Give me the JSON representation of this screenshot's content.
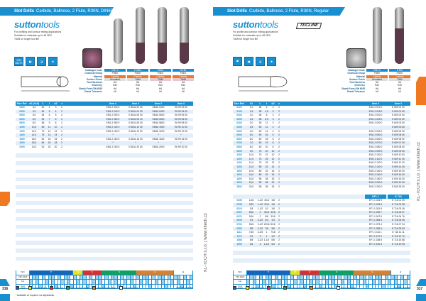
{
  "left": {
    "title_bold": "Slot Drills",
    "title_rest": "Carbide, Ballnose, 2 Flute, R30N, DIN6527K",
    "logo_bold": "sutton",
    "logo_light": "tools",
    "bullets": [
      "For profiling and contour milling applications",
      "Suitable for materials up to 48 HRC",
      "TiAlN for longer tool life"
    ],
    "icons": [
      "DIN 6527K",
      "depth",
      "coating",
      "coolant"
    ],
    "spec_labels": [
      "Catalogue Code",
      "Chemical Group",
      "Material",
      "Surface Finish",
      "Tool Hardness",
      "Geometry",
      "Shank Form DIN 6535",
      "Shank Tolerance"
    ],
    "spec_cols": [
      [
        "EM1 2",
        "P/M/K",
        "Carbide",
        "Uncoated",
        "HA",
        "R30",
        "HA",
        "h6"
      ],
      [
        "E 6811",
        "P/M/K",
        "Carbide",
        "TiAlN",
        "HA",
        "R30",
        "HA",
        "h6"
      ],
      [
        "EM16",
        "P/M/K",
        "Carbide",
        "TiAlN",
        "HA",
        "R30",
        "HA",
        "h6"
      ],
      [
        "E6 99",
        "P/M/K",
        "Carbide",
        "TiAlN",
        "HA",
        "R30",
        "HA",
        "h6"
      ]
    ],
    "table_headers": [
      "Size Ref.",
      "d1 (h10)",
      "L",
      "l",
      "d2",
      "z",
      "Item #",
      "Item #",
      "Item #",
      "Item #"
    ],
    "rows": [
      [
        "0300",
        "3,0",
        "50",
        "4",
        "3",
        "2",
        "EM1 2 030 0",
        "E 6811 03 00",
        "EM16 0300",
        "E6 99 03 00"
      ],
      [
        "0400",
        "4,0",
        "54",
        "5",
        "4",
        "2",
        "EM1 2 040 0",
        "E 6811 04 00",
        "EM16 0400",
        "E6 99 04 00"
      ],
      [
        "0500",
        "5,0",
        "54",
        "6",
        "5",
        "2",
        "EM1 2 050 0",
        "E 6811 05 00",
        "EM16 0500",
        "E6 99 05 00"
      ],
      [
        "0600",
        "6,0",
        "54",
        "7",
        "6",
        "2",
        "EM1 2 060 0",
        "E 6811 06 00",
        "EM16 0600",
        "E6 99 06 00"
      ],
      [
        "0800",
        "8,0",
        "58",
        "9",
        "8",
        "2",
        "EM1 2 080 0",
        "E 6811 08 00",
        "EM16 0800",
        "E6 99 08 00"
      ],
      [
        "1000",
        "10,0",
        "66",
        "11",
        "10",
        "2",
        "EM1 2 100 0",
        "E 6811 10 00",
        "EM16 1000",
        "E6 99 10 00"
      ],
      [
        "1200",
        "12,0",
        "73",
        "12",
        "12",
        "2",
        "EM1 2 120 0",
        "E 6811 12 00",
        "EM16 1200",
        "E6 99 12 00"
      ],
      [
        "1400",
        "14,0",
        "75",
        "14",
        "14",
        "2",
        "*",
        "*",
        "*",
        "*"
      ],
      [
        "1600",
        "16,0",
        "82",
        "16",
        "16",
        "2",
        "EM1 2 160 0",
        "E 6811 16 00",
        "EM16 1600",
        "E6 99 16 00"
      ],
      [
        "1800",
        "18,0",
        "84",
        "18",
        "18",
        "2",
        "*",
        "*",
        "*",
        "*"
      ],
      [
        "2000",
        "20,0",
        "92",
        "20",
        "20",
        "2",
        "EM1 2 200 0",
        "E 6811 20 00",
        "EM16 2000",
        "E6 99 20 00"
      ]
    ],
    "page_number": "316",
    "footnote": "* Available on request / na objednávku"
  },
  "right": {
    "title_bold": "Slot Drills",
    "title_rest": "Carbide, Ballnose, 2 Flute, R30N, Regular",
    "logo_bold": "sutton",
    "logo_light": "tools",
    "brand": "TECLINE",
    "bullets": [
      "For profile and contour milling applications",
      "Suitable for materials up to 48 HRC",
      "TiAlN for longer tool life"
    ],
    "spec_cols": [
      [
        "EM1 2",
        "P/M/K",
        "Carbide",
        "Uncoated",
        "HA",
        "R30",
        "HA",
        "h6"
      ],
      [
        "E 609",
        "P/M/K",
        "Carbide",
        "TiAlN",
        "HA",
        "R30",
        "HA",
        "h6"
      ]
    ],
    "table_headers": [
      "Size Ref.",
      "d1",
      "L",
      "l",
      "d2",
      "z",
      "Item #",
      "Item #"
    ],
    "rows": [
      [
        "0100",
        "1,0",
        "38",
        "4",
        "3",
        "2",
        "EM1 2 010 0",
        "E 609 01 00"
      ],
      [
        "0150",
        "1,5",
        "38",
        "4,5",
        "3",
        "2",
        "EM1 2 015 0",
        "E 609 01 50"
      ],
      [
        "0200",
        "2,0",
        "38",
        "6",
        "3",
        "2",
        "EM1 2 020 0",
        "E 609 02 00"
      ],
      [
        "0250",
        "2,5",
        "38",
        "6,5",
        "3",
        "2",
        "EM1 2 025 0",
        "E 609 02 50"
      ],
      [
        "0300",
        "3,0",
        "38",
        "12",
        "3",
        "2",
        "EM1 2 030 0",
        "E 609 03 00"
      ],
      [
        "0350",
        "3,5",
        "50",
        "12",
        "4",
        "2",
        "",
        "E 609 03 50"
      ],
      [
        "0400",
        "4,0",
        "50",
        "14",
        "4",
        "2",
        "EM1 2 040 0",
        "E 609 04 00"
      ],
      [
        "0500",
        "5,0",
        "50",
        "16",
        "5",
        "2",
        "EM1 2 050 0",
        "E 609 05 00"
      ],
      [
        "0600",
        "6,0",
        "50",
        "18",
        "6",
        "2",
        "EM1 2 060 0",
        "E 609 06 00"
      ],
      [
        "0700",
        "7,0",
        "63",
        "19",
        "8",
        "2",
        "EM1 2 070 0",
        "E 609 07 00"
      ],
      [
        "0800",
        "8,0",
        "63",
        "20",
        "8",
        "2",
        "EM1 2 080 0",
        "E 609 08 00"
      ],
      [
        "0900",
        "9,0",
        "75",
        "20",
        "10",
        "2",
        "EM1 2 090 0",
        "E 609 09 00"
      ],
      [
        "1000",
        "10,0",
        "75",
        "22",
        "10",
        "2",
        "EM1 2 100 0",
        "E 609 10 00"
      ],
      [
        "1100",
        "11,0",
        "75",
        "25",
        "12",
        "2",
        "EM1 2 110 0",
        "E 609 11 00"
      ],
      [
        "1200",
        "12,0",
        "75",
        "25",
        "12",
        "2",
        "EM1 2 120 0",
        "E 609 12 00"
      ],
      [
        "1400",
        "14,0",
        "89",
        "32",
        "14",
        "2",
        "EM1 2 140 0",
        "E 609 14 00"
      ],
      [
        "1500",
        "15,0",
        "89",
        "32",
        "16",
        "2",
        "EM1 2 150 0",
        "E 609 15 00"
      ],
      [
        "1600",
        "16,0",
        "89",
        "32",
        "16",
        "2",
        "EM1 2 160 0",
        "E 609 16 00"
      ],
      [
        "1800",
        "18,0",
        "98",
        "38",
        "18",
        "2",
        "EM1 2 180 0",
        "E 609 18 00"
      ],
      [
        "2000",
        "20,0",
        "98",
        "38",
        "20",
        "2",
        "EM1 2 200 0",
        "E 609 20 00"
      ],
      [
        "2500",
        "25,0",
        "98",
        "38",
        "25",
        "2",
        "EM1 2 250 0",
        "E 609 25 00"
      ]
    ],
    "inch_headers": [
      "EF1 1",
      "E 716"
    ],
    "inch_rows": [
      [
        "0159",
        "1/16",
        "1-1/2",
        "3/16",
        "1/8",
        "2",
        "EF1 1 015 9",
        "E 716 01 59"
      ],
      [
        "0238",
        "3/32",
        "1-1/2",
        "3/16",
        "1/8",
        "2",
        "EF1 1 023 8",
        "E 716 02 38"
      ],
      [
        "0318",
        "1/8",
        "1-1/2",
        "1/2",
        "1/8",
        "2",
        "EF1 1 031 8",
        "E 716 03 18"
      ],
      [
        "0397",
        "5/32",
        "2",
        "5/16",
        "3/16",
        "2",
        "EF1 1 039 7",
        "E 716 03 97"
      ],
      [
        "0476",
        "3/16",
        "2",
        "5/8",
        "3/16",
        "2",
        "EF1 1 047 6",
        "E 716 04 76"
      ],
      [
        "0635",
        "1/4",
        "2-1/2",
        "3/4",
        "1/4",
        "2",
        "EF1 1 063 5",
        "E 716 06 35"
      ],
      [
        "0794",
        "5/16",
        "2-1/2",
        "13/16",
        "5/16",
        "2",
        "EF1 1 079 4",
        "E 716 07 94"
      ],
      [
        "0953",
        "3/8",
        "2-1/2",
        "7/8",
        "3/8",
        "2",
        "EF1 1 095 3",
        "E 716 09 53"
      ],
      [
        "1111",
        "7/16",
        "2-3/4",
        "1",
        "7/16",
        "2",
        "EF1 1 111 1",
        "E 716 11 11"
      ],
      [
        "1270",
        "1/2",
        "3",
        "1",
        "1/2",
        "2",
        "EF1 1 127 0",
        "E 716 12 70"
      ],
      [
        "1588",
        "5/8",
        "3-1/2",
        "1-1/4",
        "5/8",
        "2",
        "EF1 1 158 8",
        "E 716 15 88"
      ],
      [
        "1905",
        "3/4",
        "4",
        "1-1/2",
        "3/4",
        "2",
        "EF1 1 190 5",
        "E 716 19 05"
      ]
    ],
    "page_number": "317"
  },
  "side_text": "KL-TECH s.r.o. | www.kltech.cz",
  "materials": {
    "row_labels": [
      "ISO",
      "VDI 3323",
      "1st",
      "2nd"
    ],
    "groups": [
      {
        "k": "P",
        "color": "#1565b8",
        "n": 14
      },
      {
        "k": "M",
        "color": "#e8e020",
        "n": 3
      },
      {
        "k": "K",
        "color": "#d83030",
        "n": 6
      },
      {
        "k": "N",
        "color": "#10a060",
        "n": 11
      },
      {
        "k": "S",
        "color": "#d88030",
        "n": 12
      },
      {
        "k": "H",
        "color": "#ffffff",
        "n": 6
      }
    ],
    "legend": [
      "Steel",
      "Stainless steel",
      "Cast iron",
      "Non-ferrous metals",
      "Heat resistant alloys",
      "Hardened steel"
    ],
    "legend_right": "Optimal / Suitable"
  },
  "colors": {
    "accent": "#1a8fd0",
    "orange": "#f07820"
  }
}
